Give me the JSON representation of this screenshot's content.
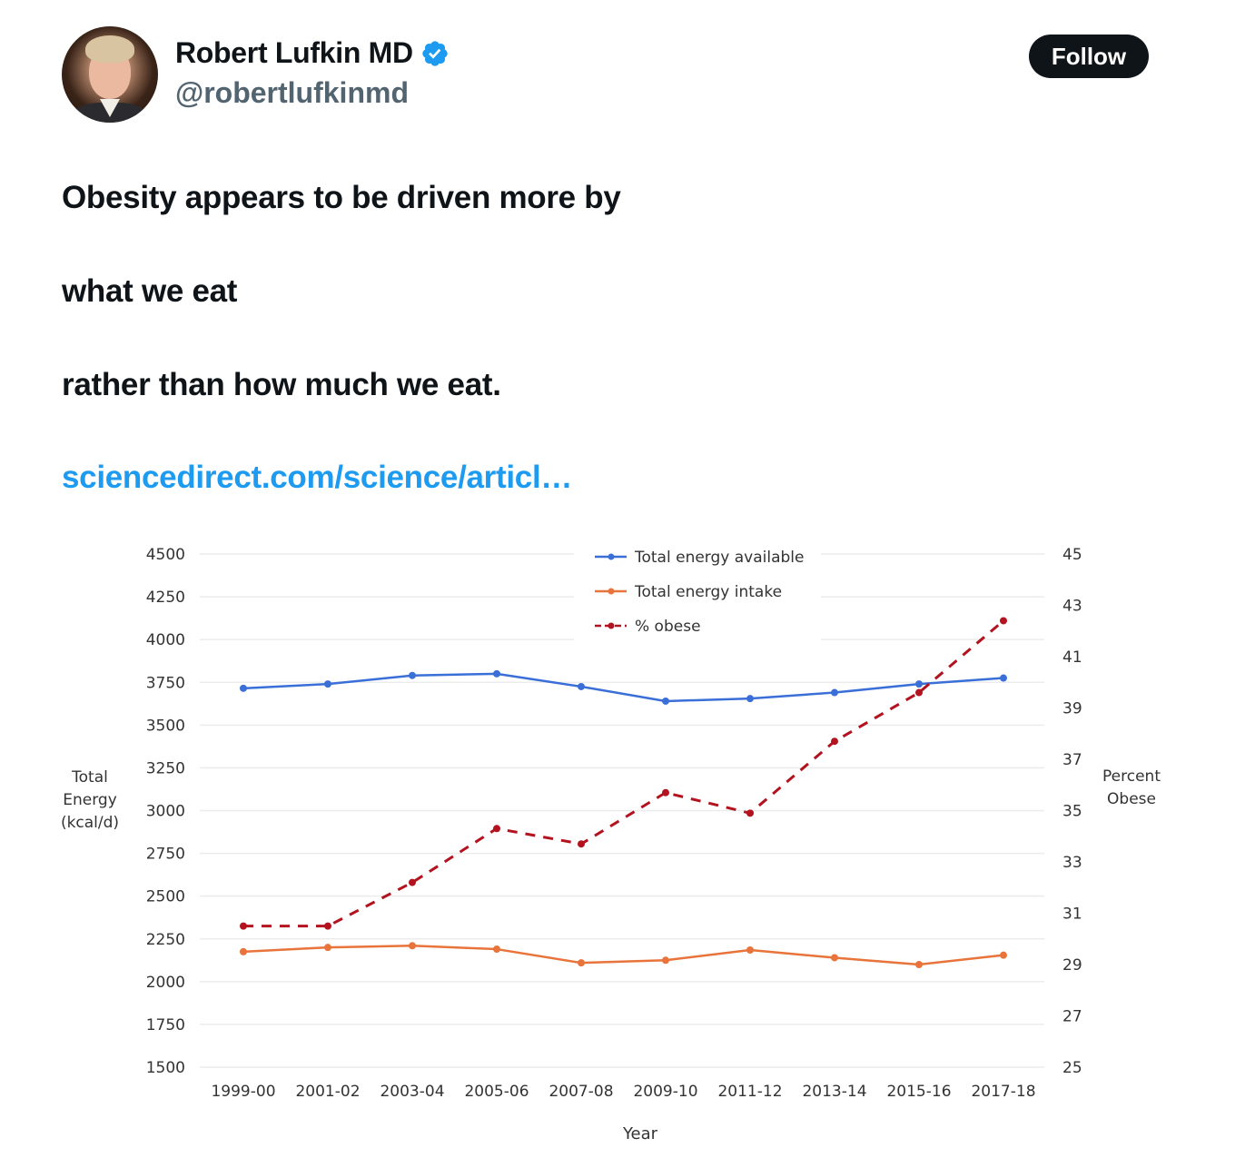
{
  "tweet": {
    "author_name": "Robert Lufkin MD",
    "author_handle": "@robertlufkinmd",
    "verified_icon": "verified-badge-icon",
    "follow_label": "Follow",
    "text_lines": [
      "Obesity appears to be driven more by",
      "what we eat",
      "rather than how much we eat."
    ],
    "link_text": "sciencedirect.com/science/articl…"
  },
  "chart_data": {
    "type": "line",
    "title": "",
    "xlabel": "Year",
    "ylabel": "Total Energy (kcal/d)",
    "ylabel_lines": [
      "Total",
      "Energy",
      "(kcal/d)"
    ],
    "y2label": "Percent Obese",
    "y2label_lines": [
      "Percent",
      "Obese"
    ],
    "categories": [
      "1999-00",
      "2001-02",
      "2003-04",
      "2005-06",
      "2007-08",
      "2009-10",
      "2011-12",
      "2013-14",
      "2015-16",
      "2017-18"
    ],
    "ylim": [
      1500,
      4500
    ],
    "yticks": [
      4500,
      4250,
      4000,
      3750,
      3500,
      3250,
      3000,
      2750,
      2500,
      2250,
      2000,
      1750,
      1500
    ],
    "y2lim": [
      25,
      45
    ],
    "y2ticks": [
      45,
      43,
      41,
      39,
      37,
      35,
      33,
      31,
      29,
      27,
      25
    ],
    "grid": true,
    "legend_position": "top-center",
    "series": [
      {
        "name": "Total energy available",
        "axis": "left",
        "color": "#3b6fd8",
        "dashed": false,
        "values": [
          3715,
          3740,
          3790,
          3800,
          3725,
          3640,
          3655,
          3690,
          3740,
          3775
        ]
      },
      {
        "name": "Total energy intake",
        "axis": "left",
        "color": "#e8743b",
        "dashed": false,
        "values": [
          2175,
          2200,
          2210,
          2190,
          2110,
          2125,
          2185,
          2140,
          2100,
          2155
        ]
      },
      {
        "name": "% obese",
        "axis": "right",
        "color": "#b3121f",
        "dashed": true,
        "values": [
          30.5,
          30.5,
          32.2,
          34.3,
          33.7,
          35.7,
          34.9,
          37.7,
          39.6,
          42.4
        ]
      }
    ]
  }
}
